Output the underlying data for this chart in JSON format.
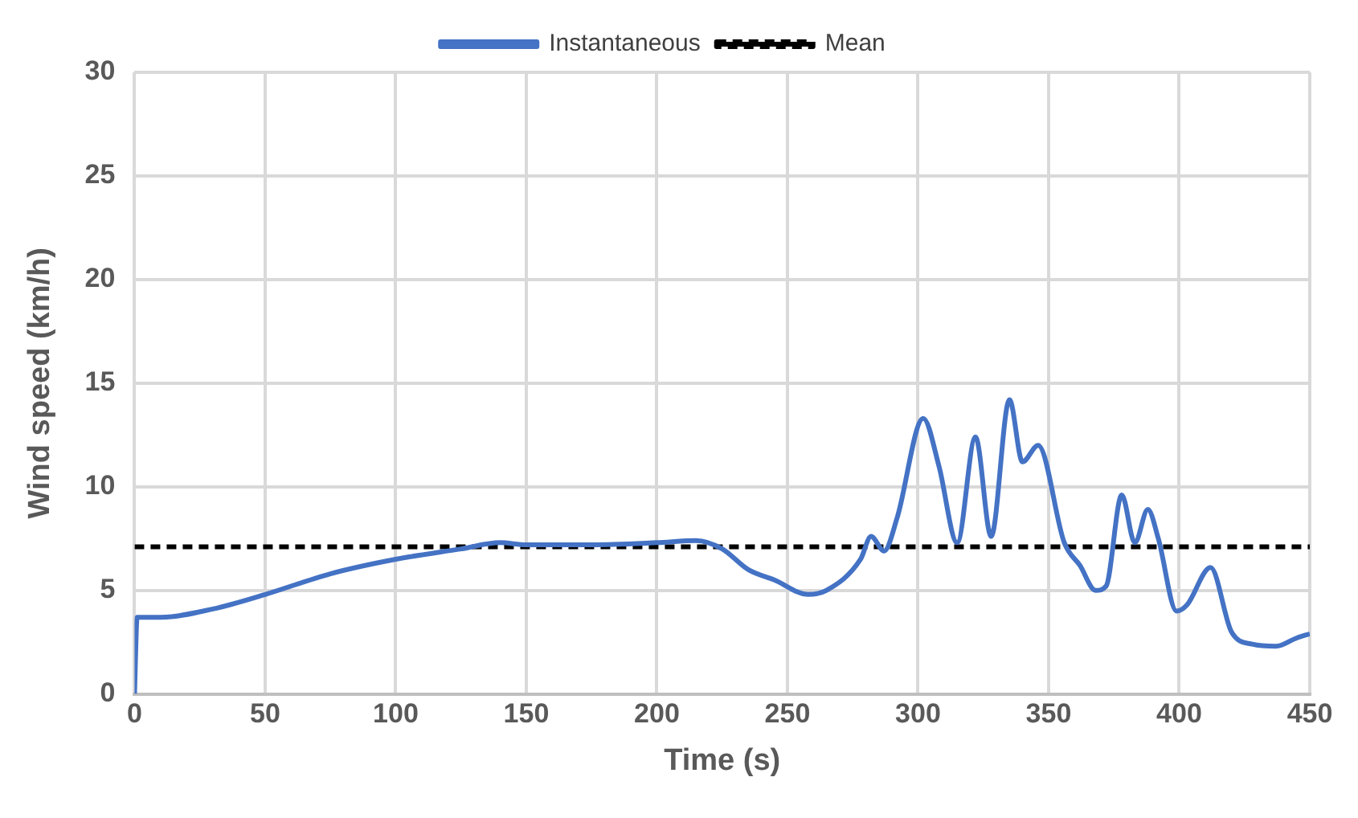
{
  "chart_data": {
    "type": "line",
    "xlabel": "Time (s)",
    "ylabel": "Wind speed (km/h)",
    "xlim": [
      0,
      450
    ],
    "xticks": [
      0,
      50,
      100,
      150,
      200,
      250,
      300,
      350,
      400,
      450
    ],
    "ylim": [
      0,
      30
    ],
    "yticks": [
      0,
      5,
      10,
      15,
      20,
      25,
      30
    ],
    "grid": true,
    "legend": "top",
    "marker": "none",
    "series": [
      {
        "name": "Instantaneous",
        "color": "#4472c4",
        "line_style": "solid",
        "x": [
          0,
          1,
          10,
          30,
          50,
          75,
          100,
          125,
          140,
          150,
          175,
          200,
          215,
          225,
          235,
          245,
          258,
          265,
          278,
          282,
          287,
          292,
          302,
          308,
          315,
          322,
          328,
          335,
          340,
          346,
          356,
          362,
          368,
          372,
          378,
          383,
          388,
          392,
          399,
          403,
          412,
          420,
          428,
          437,
          445,
          450
        ],
        "values": [
          0,
          3.7,
          3.7,
          4.1,
          4.8,
          5.8,
          6.5,
          7,
          7.3,
          7.2,
          7.2,
          7.3,
          7.4,
          7.0,
          6.0,
          5.5,
          4.8,
          5.0,
          6.5,
          7.6,
          6.9,
          8.5,
          13.3,
          11,
          7.3,
          12.4,
          7.6,
          14.2,
          11.2,
          12.0,
          7.3,
          6.2,
          5.0,
          5.2,
          9.6,
          7.3,
          8.9,
          7.5,
          4.0,
          4.3,
          6.1,
          3.0,
          2.4,
          2.3,
          2.7,
          2.9
        ]
      },
      {
        "name": "Mean",
        "color": "#000000",
        "line_style": "dashed",
        "x": [
          0,
          450
        ],
        "values": [
          7.1,
          7.1
        ]
      }
    ]
  }
}
